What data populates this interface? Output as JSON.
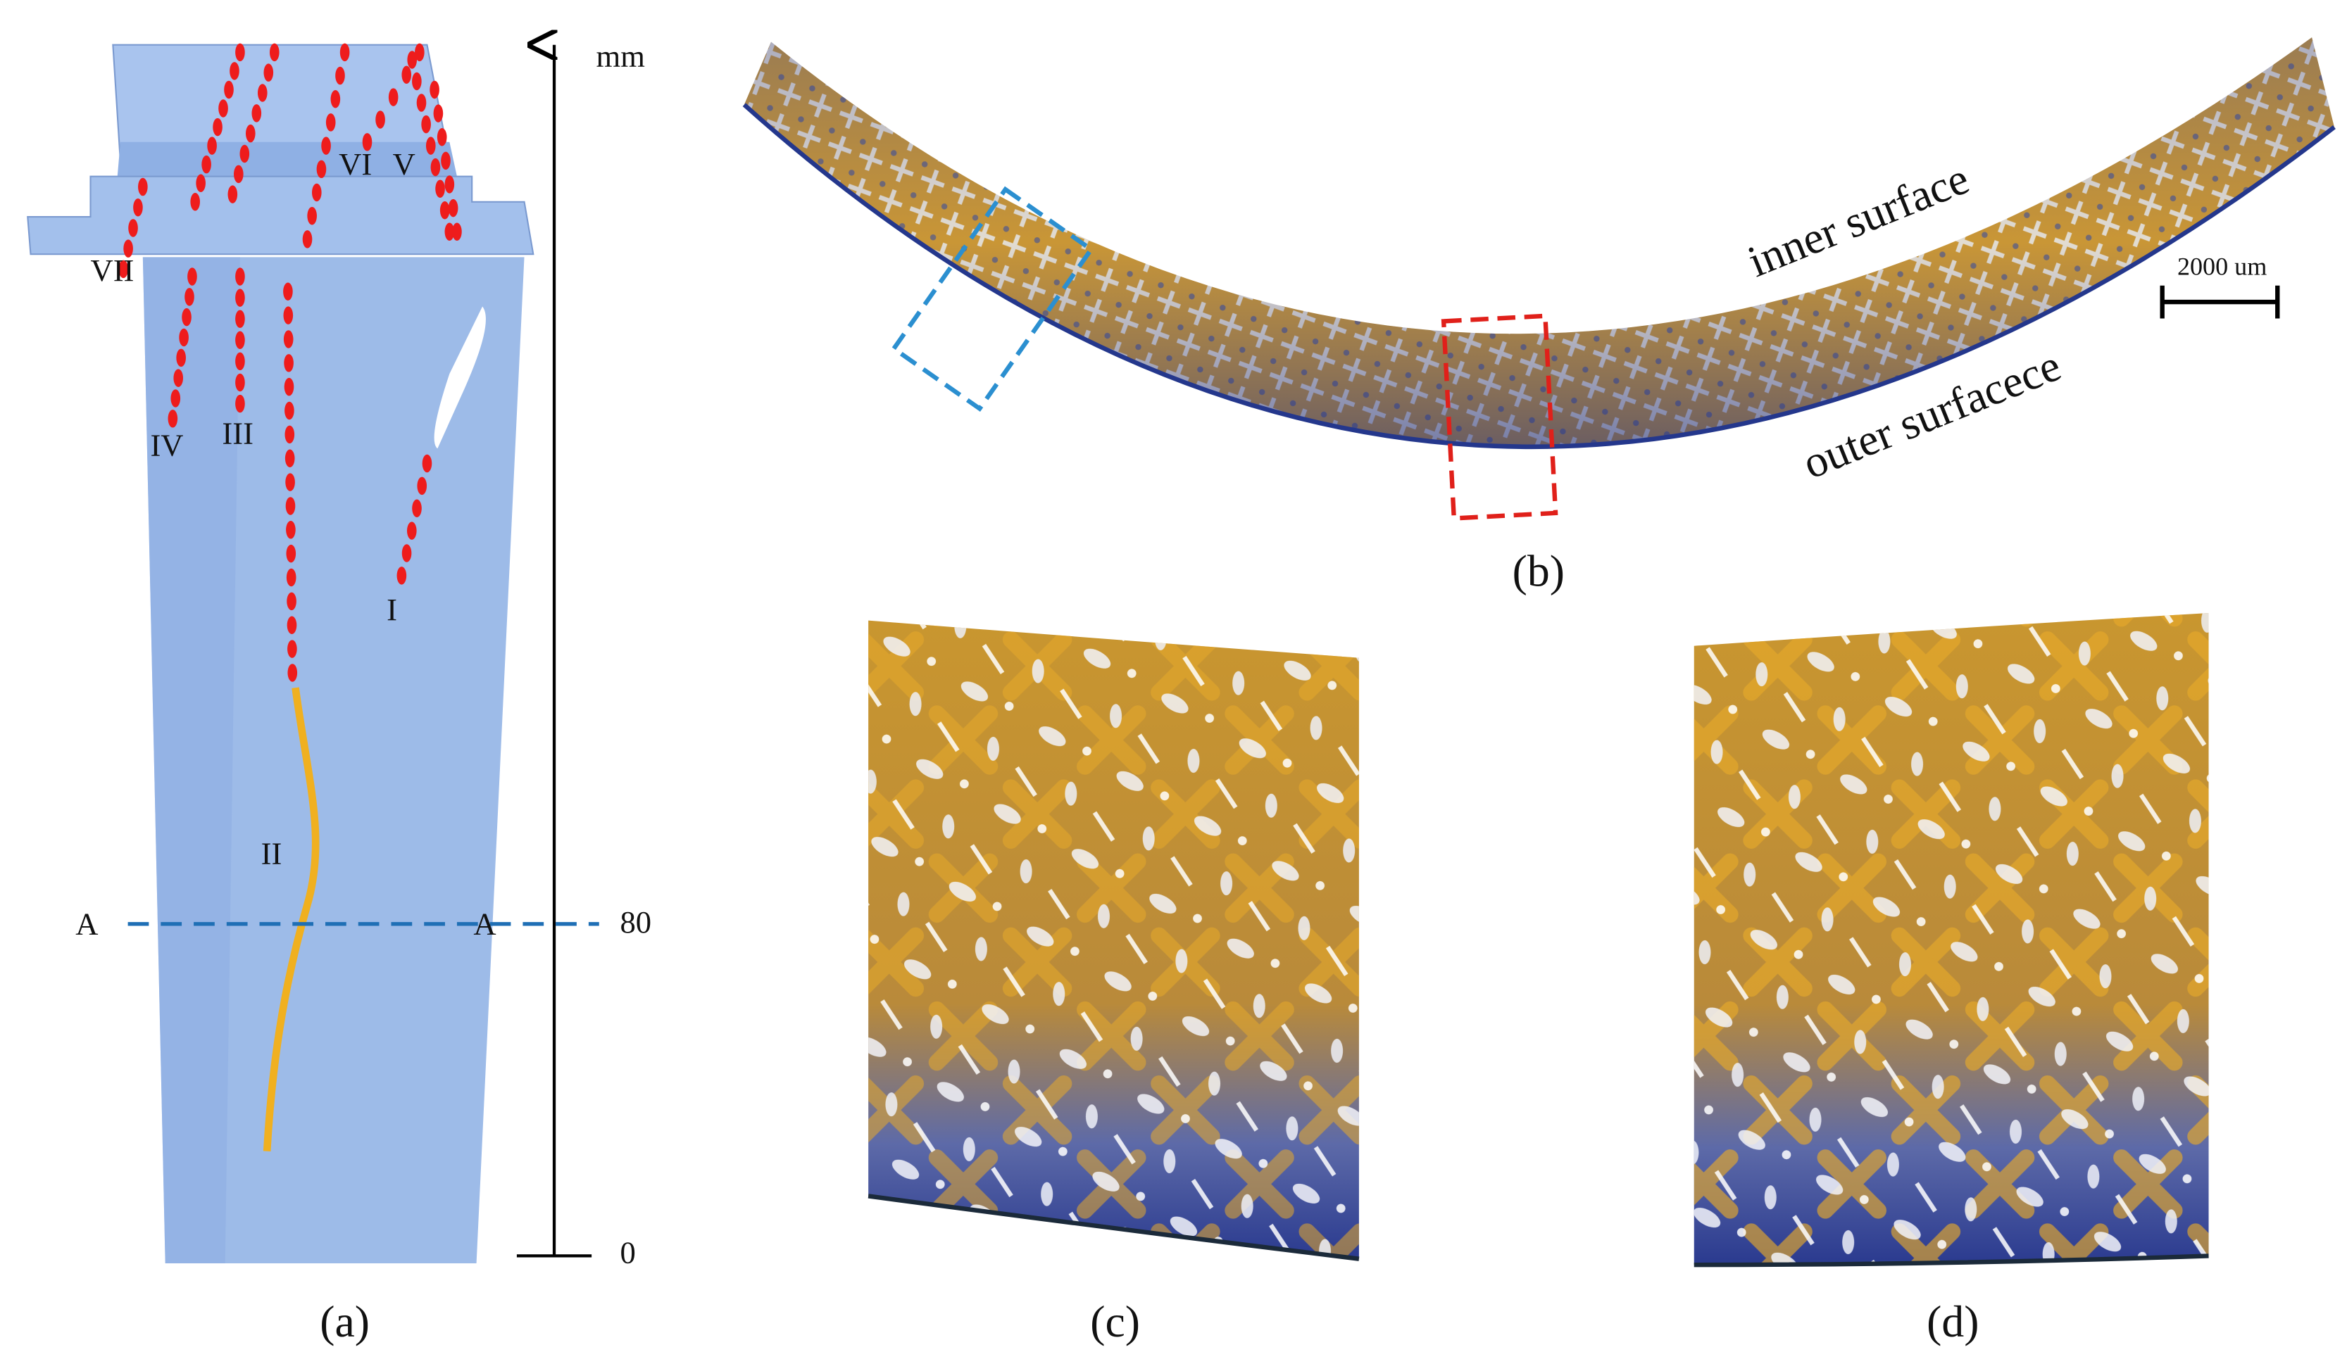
{
  "panel_a": {
    "axis_unit": "mm",
    "axis_tick_labels": [
      "80",
      "0"
    ],
    "section_labels": [
      "A",
      "A"
    ],
    "crack_labels": [
      "I",
      "II",
      "III",
      "IV",
      "V",
      "VI",
      "VII"
    ],
    "caption": "(a)"
  },
  "panel_b": {
    "surface_labels": [
      "inner surface",
      "outer surfacece"
    ],
    "scale_bar": "2000 um",
    "caption": "(b)"
  },
  "panel_c": {
    "caption": "(c)"
  },
  "panel_d": {
    "caption": "(d)"
  }
}
